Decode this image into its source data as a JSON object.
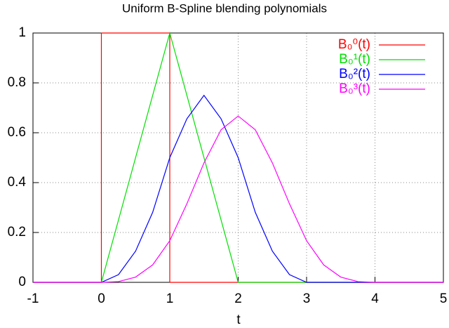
{
  "chart_data": {
    "type": "line",
    "title": "Uniform B-Spline blending polynomials",
    "x_label": "t",
    "xlim": [
      -1,
      5
    ],
    "ylim": [
      0,
      1
    ],
    "xticks": [
      -1,
      0,
      1,
      2,
      3,
      4,
      5
    ],
    "yticks": [
      0,
      0.2,
      0.4,
      0.6,
      0.8,
      1
    ],
    "grid": true,
    "legend": "upper right",
    "series": [
      {
        "name": "B₀⁰(t)",
        "color": "#ff0000",
        "x": [
          -1,
          0,
          0,
          1,
          1,
          5
        ],
        "values": [
          0,
          0,
          1,
          1,
          0,
          0
        ]
      },
      {
        "name": "B₀¹(t)",
        "color": "#00e000",
        "x": [
          -1,
          0,
          1,
          2,
          5
        ],
        "values": [
          0,
          0,
          1,
          0,
          0
        ]
      },
      {
        "name": "B₀²(t)",
        "color": "#0000ff",
        "x": [
          -1,
          0,
          0.25,
          0.5,
          0.75,
          1,
          1.25,
          1.5,
          1.75,
          2,
          2.25,
          2.5,
          2.75,
          3,
          5
        ],
        "values": [
          0,
          0,
          0.031,
          0.125,
          0.281,
          0.5,
          0.656,
          0.75,
          0.656,
          0.5,
          0.281,
          0.125,
          0.031,
          0,
          0
        ]
      },
      {
        "name": "B₀³(t)",
        "color": "#ff00ff",
        "x": [
          -1,
          0,
          0.25,
          0.5,
          0.75,
          1,
          1.25,
          1.5,
          1.75,
          2,
          2.25,
          2.5,
          2.75,
          3,
          3.25,
          3.5,
          3.75,
          4,
          5
        ],
        "values": [
          0,
          0,
          0.003,
          0.021,
          0.07,
          0.167,
          0.315,
          0.479,
          0.612,
          0.667,
          0.612,
          0.479,
          0.315,
          0.167,
          0.07,
          0.021,
          0.003,
          0,
          0
        ]
      }
    ]
  }
}
